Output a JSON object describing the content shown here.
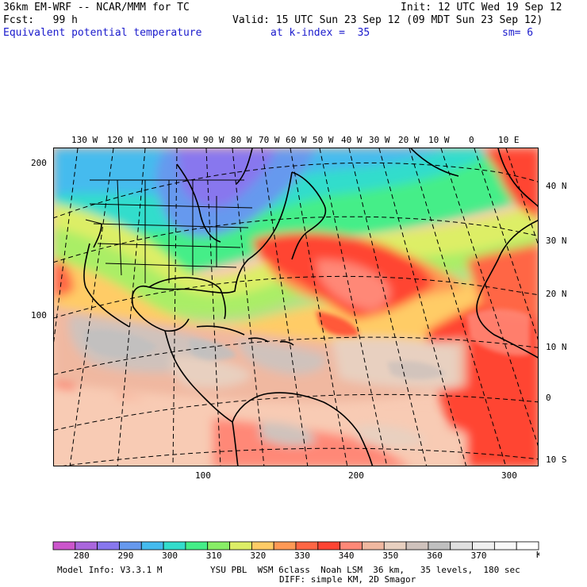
{
  "header": {
    "line1_left": "36km EM-WRF -- NCAR/MMM for TC",
    "line1_right": "Init: 12 UTC Wed 19 Sep 12",
    "line2_left": "Fcst:   99 h",
    "line2_right": "Valid: 15 UTC Sun 23 Sep 12 (09 MDT Sun 23 Sep 12)",
    "line3_field": "Equivalent potential temperature",
    "line3_level": "at k-index =  35",
    "line3_sm": "sm= 6"
  },
  "map": {
    "lon_labels": [
      "130 W",
      "120 W",
      "110 W",
      "100 W",
      "90 W",
      "80 W",
      "70 W",
      "60 W",
      "50 W",
      "40 W",
      "30 W",
      "20 W",
      "10 W",
      "0",
      "10 E"
    ],
    "lat_labels": [
      "40 N",
      "30 N",
      "20 N",
      "10 N",
      "0",
      "10 S"
    ],
    "grid_y_labels": [
      "200",
      "100"
    ],
    "grid_x_labels": [
      "100",
      "200",
      "300"
    ]
  },
  "colorbar": {
    "colors": [
      "#cc55cc",
      "#aa66dd",
      "#8877ee",
      "#6699ee",
      "#44bbee",
      "#33ddcc",
      "#44ee88",
      "#88ee66",
      "#ddee66",
      "#ffcc66",
      "#ff9955",
      "#ff6644",
      "#ff4433",
      "#ff8877",
      "#f0b8a0",
      "#e8d0c0",
      "#cfc2bc",
      "#c0c0c0",
      "#e0e0e0",
      "#f0f0f0",
      "#f8f8f8",
      "#ffffff"
    ],
    "labels": [
      "280",
      "290",
      "300",
      "310",
      "320",
      "330",
      "340",
      "350",
      "360",
      "370"
    ],
    "unit": "K"
  },
  "footer": {
    "left": "Model Info: V3.3.1 M",
    "right1": "YSU PBL  WSM 6class  Noah LSM  36 km,   35 levels,  180 sec",
    "right2": "DIFF: simple KM, 2D Smagor"
  }
}
